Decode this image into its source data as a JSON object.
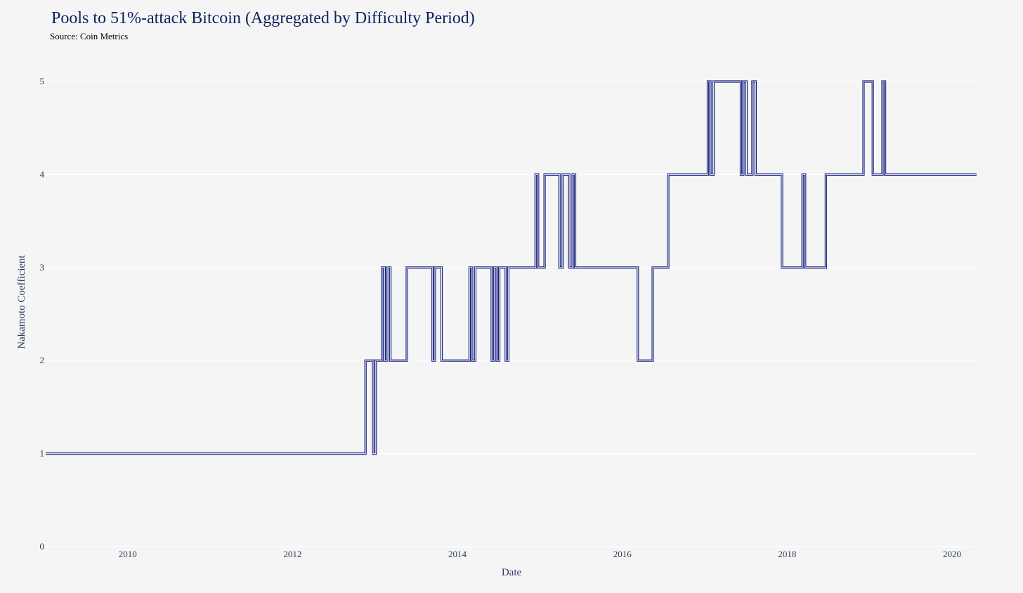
{
  "chart_data": {
    "type": "line",
    "line_shape": "step",
    "title": "Pools to 51%-attack Bitcoin (Aggregated by Difficulty Period)",
    "subtitle": "Source: Coin Metrics",
    "xlabel": "Date",
    "ylabel": "Nakamoto Coefficient",
    "x_ticks": [
      "2010",
      "2012",
      "2014",
      "2016",
      "2018",
      "2020"
    ],
    "y_ticks": [
      "0",
      "1",
      "2",
      "3",
      "4",
      "5"
    ],
    "ylim": [
      0,
      5
    ],
    "xlim": [
      "2009-01-03",
      "2020-04-19"
    ],
    "grid": "horizontal",
    "legend": "none",
    "line_color": "#1a237e",
    "background": "#f5f5f5",
    "points": [
      [
        "2009-01-03",
        1
      ],
      [
        "2012-11-20",
        2
      ],
      [
        "2012-12-24",
        1
      ],
      [
        "2013-01-04",
        2
      ],
      [
        "2013-02-02",
        3
      ],
      [
        "2013-02-13",
        2
      ],
      [
        "2013-02-24",
        3
      ],
      [
        "2013-03-10",
        2
      ],
      [
        "2013-05-22",
        3
      ],
      [
        "2013-09-13",
        2
      ],
      [
        "2013-09-23",
        3
      ],
      [
        "2013-10-23",
        2
      ],
      [
        "2014-02-24",
        3
      ],
      [
        "2014-03-07",
        2
      ],
      [
        "2014-03-21",
        3
      ],
      [
        "2014-06-02",
        2
      ],
      [
        "2014-06-13",
        3
      ],
      [
        "2014-06-24",
        2
      ],
      [
        "2014-07-05",
        3
      ],
      [
        "2014-08-03",
        2
      ],
      [
        "2014-08-14",
        3
      ],
      [
        "2014-12-13",
        4
      ],
      [
        "2014-12-24",
        3
      ],
      [
        "2015-01-22",
        4
      ],
      [
        "2015-03-29",
        3
      ],
      [
        "2015-04-12",
        4
      ],
      [
        "2015-05-11",
        3
      ],
      [
        "2015-05-26",
        4
      ],
      [
        "2015-06-06",
        3
      ],
      [
        "2016-03-10",
        2
      ],
      [
        "2016-05-15",
        3
      ],
      [
        "2016-07-23",
        4
      ],
      [
        "2017-01-15",
        5
      ],
      [
        "2017-01-26",
        4
      ],
      [
        "2017-02-09",
        5
      ],
      [
        "2017-06-10",
        4
      ],
      [
        "2017-06-21",
        5
      ],
      [
        "2017-07-05",
        4
      ],
      [
        "2017-07-31",
        5
      ],
      [
        "2017-08-14",
        4
      ],
      [
        "2017-12-09",
        3
      ],
      [
        "2018-03-10",
        4
      ],
      [
        "2018-03-21",
        3
      ],
      [
        "2018-06-21",
        4
      ],
      [
        "2018-12-05",
        5
      ],
      [
        "2019-01-15",
        4
      ],
      [
        "2019-02-27",
        5
      ],
      [
        "2019-03-10",
        4
      ],
      [
        "2020-04-19",
        4
      ]
    ]
  }
}
